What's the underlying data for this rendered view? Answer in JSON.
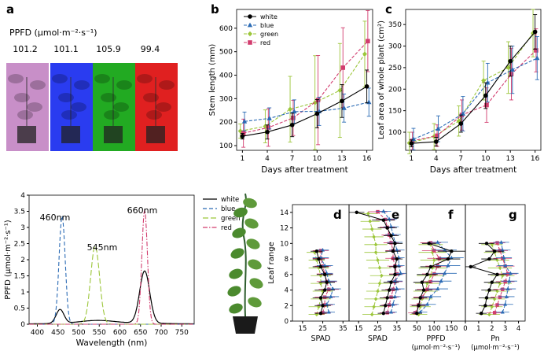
{
  "colors": {
    "white": "#000000",
    "blue": "#2b6bb5",
    "green": "#9cc63a",
    "red": "#d23c6e",
    "axis": "#333333"
  },
  "panel_letters": {
    "a": "a",
    "b": "b",
    "c": "c",
    "d": "d",
    "e": "e",
    "f": "f",
    "g": "g"
  },
  "panel_a": {
    "ppfd_label": "PPFD (μmol·m⁻²·s⁻¹)",
    "ppfd_values": [
      "101.2",
      "101.1",
      "105.9",
      "99.4"
    ],
    "photo_colors": [
      "#c88fc8",
      "#2a3cf0",
      "#22aa22",
      "#e02020"
    ]
  },
  "chart_data": [
    {
      "id": "spectrum",
      "type": "line",
      "xlabel": "Wavelength (nm)",
      "ylabel": "PPFD (μmol·m⁻²·s⁻¹)",
      "xlim": [
        380,
        780
      ],
      "ylim": [
        0,
        4
      ],
      "xticks": [
        400,
        450,
        500,
        550,
        600,
        650,
        700,
        750
      ],
      "yticks": [
        0,
        0.5,
        1,
        1.5,
        2,
        2.5,
        3,
        3.5,
        4
      ],
      "ytick_labels": [
        "0",
        "0.5",
        "1",
        "1.5",
        "2",
        "2.5",
        "3",
        "3.5",
        "4"
      ],
      "annotations": [
        "460nm",
        "545nm",
        "660nm"
      ],
      "legend": [
        "white",
        "blue",
        "green",
        "red"
      ],
      "series": [
        {
          "name": "white",
          "style": "solid",
          "peaks": [
            [
              455,
              0.43,
              14
            ],
            [
              545,
              0.08,
              60
            ],
            [
              660,
              1.62,
              18
            ]
          ],
          "base": 0.04
        },
        {
          "name": "blue",
          "style": "dash",
          "peaks": [
            [
              460,
              3.35,
              11
            ]
          ],
          "base": 0.0
        },
        {
          "name": "green",
          "style": "dash2",
          "peaks": [
            [
              540,
              2.43,
              16
            ]
          ],
          "base": 0.0
        },
        {
          "name": "red",
          "style": "dashdot",
          "peaks": [
            [
              660,
              3.55,
              10
            ]
          ],
          "base": 0.0
        }
      ]
    },
    {
      "id": "stem",
      "type": "line",
      "xlabel": "Days after treatment",
      "ylabel": "Stem length (mm)",
      "x": [
        1,
        4,
        7,
        10,
        13,
        16
      ],
      "xticks": [
        "1",
        "4",
        "7",
        "10",
        "13",
        "16"
      ],
      "ylim": [
        80,
        680
      ],
      "yticks": [
        100,
        200,
        300,
        400,
        500,
        600
      ],
      "legend": [
        "white",
        "blue",
        "green",
        "red"
      ],
      "series": [
        {
          "name": "white",
          "values": [
            140,
            158,
            188,
            236,
            290,
            352
          ],
          "err": [
            12,
            30,
            50,
            60,
            70,
            70
          ]
        },
        {
          "name": "blue",
          "values": [
            203,
            216,
            245,
            246,
            260,
            285
          ],
          "err": [
            40,
            45,
            50,
            60,
            60,
            60
          ]
        },
        {
          "name": "green",
          "values": [
            162,
            182,
            255,
            283,
            335,
            490
          ],
          "err": [
            30,
            70,
            140,
            200,
            200,
            140
          ]
        },
        {
          "name": "red",
          "values": [
            153,
            177,
            218,
            294,
            432,
            545
          ],
          "err": [
            60,
            80,
            75,
            190,
            170,
            130
          ]
        }
      ]
    },
    {
      "id": "leafarea",
      "type": "line",
      "xlabel": "Days after treatment",
      "ylabel": "Leaf area of whole plant (cm²)",
      "x": [
        1,
        4,
        7,
        10,
        13,
        16
      ],
      "xticks": [
        "1",
        "4",
        "7",
        "10",
        "13",
        "16"
      ],
      "ylim": [
        58,
        385
      ],
      "yticks": [
        100,
        150,
        200,
        250,
        300,
        350
      ],
      "legend": [
        "white",
        "blue",
        "green",
        "red"
      ],
      "series": [
        {
          "name": "white",
          "values": [
            74,
            78,
            120,
            185,
            265,
            333
          ],
          "err": [
            8,
            10,
            20,
            30,
            35,
            40
          ]
        },
        {
          "name": "blue",
          "values": [
            84,
            108,
            143,
            215,
            245,
            272
          ],
          "err": [
            25,
            30,
            40,
            45,
            55,
            50
          ]
        },
        {
          "name": "green",
          "values": [
            75,
            90,
            126,
            220,
            250,
            330
          ],
          "err": [
            25,
            30,
            35,
            45,
            60,
            55
          ]
        },
        {
          "name": "red",
          "values": [
            80,
            92,
            140,
            163,
            235,
            290
          ],
          "err": [
            20,
            25,
            35,
            40,
            60,
            50
          ]
        }
      ]
    },
    {
      "id": "spad_d",
      "type": "line",
      "xlabel": "SPAD",
      "ylabel": "Leaf range",
      "xlim": [
        10,
        38
      ],
      "xticks": [
        15,
        25,
        35
      ],
      "ylim": [
        0,
        15
      ],
      "yticks": [
        0,
        2,
        4,
        6,
        8,
        10,
        12,
        14
      ],
      "y": [
        1,
        2,
        3,
        4,
        5,
        6,
        7,
        8,
        9
      ],
      "series": [
        {
          "name": "white",
          "values": [
            24,
            25,
            24,
            26,
            27,
            26,
            24,
            23,
            22
          ],
          "err": [
            3,
            4,
            4,
            5,
            4,
            4,
            4,
            3,
            3
          ]
        },
        {
          "name": "blue",
          "values": [
            28,
            27,
            29,
            30,
            28,
            27,
            26,
            24,
            25
          ],
          "err": [
            3,
            4,
            4,
            4,
            4,
            3,
            4,
            4,
            3
          ]
        },
        {
          "name": "green",
          "values": [
            22,
            23,
            24,
            25,
            24,
            24,
            23,
            22,
            21
          ],
          "err": [
            4,
            5,
            5,
            5,
            5,
            5,
            5,
            4,
            4
          ]
        },
        {
          "name": "red",
          "values": [
            25,
            26,
            26,
            28,
            27,
            26,
            25,
            24,
            24
          ],
          "err": [
            4,
            4,
            5,
            5,
            5,
            4,
            4,
            4,
            4
          ]
        }
      ]
    },
    {
      "id": "spad_e",
      "type": "line",
      "xlabel": "SPAD",
      "xlim": [
        10,
        40
      ],
      "xticks": [
        15,
        25,
        35
      ],
      "ylim": [
        0,
        15
      ],
      "y": [
        1,
        2,
        3,
        4,
        5,
        6,
        7,
        8,
        9,
        10,
        11,
        12,
        13,
        14
      ],
      "series": [
        {
          "name": "white",
          "values": [
            28,
            29,
            30,
            31,
            32,
            34,
            34,
            35,
            33,
            34,
            32,
            30,
            28,
            14
          ],
          "err": [
            3,
            3,
            4,
            4,
            4,
            3,
            3,
            3,
            4,
            4,
            4,
            5,
            6,
            4
          ]
        },
        {
          "name": "blue",
          "values": [
            32,
            33,
            34,
            35,
            34,
            37,
            36,
            36,
            35,
            34,
            33,
            32,
            31,
            28
          ],
          "err": [
            3,
            3,
            3,
            4,
            4,
            3,
            3,
            3,
            4,
            4,
            4,
            4,
            4,
            4
          ]
        },
        {
          "name": "green",
          "values": [
            22,
            23,
            24,
            25,
            26,
            27,
            26,
            25,
            24,
            24,
            23,
            22,
            21,
            20
          ],
          "err": [
            5,
            5,
            6,
            6,
            6,
            6,
            6,
            6,
            6,
            6,
            5,
            5,
            5,
            5
          ]
        },
        {
          "name": "red",
          "values": [
            30,
            31,
            32,
            33,
            34,
            35,
            34,
            33,
            33,
            32,
            31,
            30,
            29,
            25
          ],
          "err": [
            4,
            4,
            4,
            4,
            4,
            4,
            4,
            4,
            4,
            4,
            4,
            4,
            5,
            5
          ]
        }
      ]
    },
    {
      "id": "ppfd_f",
      "type": "line",
      "xlabel": "PPFD",
      "xlabel2": "(μmol·m⁻²·s⁻¹)",
      "xlim": [
        20,
        190
      ],
      "xticks": [
        50,
        100,
        150
      ],
      "ylim": [
        0,
        15
      ],
      "y": [
        1,
        2,
        3,
        4,
        5,
        6,
        7,
        8,
        9,
        10
      ],
      "series": [
        {
          "name": "white",
          "values": [
            50,
            55,
            60,
            70,
            65,
            80,
            90,
            140,
            150,
            85
          ],
          "err": [
            15,
            20,
            20,
            25,
            25,
            30,
            30,
            35,
            40,
            20
          ]
        },
        {
          "name": "blue",
          "values": [
            60,
            80,
            90,
            110,
            120,
            130,
            140,
            150,
            130,
            110
          ],
          "err": [
            20,
            25,
            30,
            30,
            30,
            35,
            35,
            35,
            35,
            30
          ]
        },
        {
          "name": "green",
          "values": [
            55,
            60,
            65,
            75,
            80,
            90,
            95,
            100,
            95,
            90
          ],
          "err": [
            25,
            30,
            30,
            35,
            35,
            40,
            40,
            40,
            40,
            35
          ]
        },
        {
          "name": "red",
          "values": [
            45,
            55,
            65,
            80,
            90,
            100,
            110,
            115,
            100,
            90
          ],
          "err": [
            20,
            25,
            25,
            30,
            30,
            35,
            35,
            35,
            35,
            30
          ]
        }
      ]
    },
    {
      "id": "pn_g",
      "type": "line",
      "xlabel": "Pn",
      "xlabel2": "(μmol·m⁻²·s⁻¹)",
      "xlim": [
        0,
        4.5
      ],
      "xticks": [
        0,
        1,
        2,
        3,
        4
      ],
      "ylim": [
        0,
        15
      ],
      "y": [
        1,
        2,
        3,
        4,
        5,
        6,
        7,
        8,
        9,
        10
      ],
      "series": [
        {
          "name": "white",
          "values": [
            1.2,
            1.5,
            1.6,
            1.8,
            2.0,
            2.4,
            0.4,
            1.8,
            2.2,
            1.6
          ],
          "err": [
            0.4,
            0.5,
            0.6,
            0.6,
            0.6,
            0.7,
            0.4,
            0.6,
            0.7,
            0.6
          ]
        },
        {
          "name": "blue",
          "values": [
            2.8,
            3.0,
            3.1,
            3.2,
            3.3,
            3.4,
            3.0,
            2.9,
            2.8,
            2.7
          ],
          "err": [
            0.5,
            0.6,
            0.6,
            0.6,
            0.6,
            0.6,
            0.6,
            0.6,
            0.6,
            0.6
          ]
        },
        {
          "name": "green",
          "values": [
            1.8,
            2.0,
            2.2,
            2.4,
            2.6,
            2.8,
            2.6,
            2.4,
            2.2,
            2.0
          ],
          "err": [
            0.8,
            0.8,
            0.8,
            0.9,
            0.9,
            0.9,
            0.9,
            0.9,
            0.8,
            0.8
          ]
        },
        {
          "name": "red",
          "values": [
            2.2,
            2.4,
            2.6,
            2.8,
            3.0,
            3.2,
            3.0,
            2.8,
            2.6,
            2.4
          ],
          "err": [
            0.6,
            0.6,
            0.7,
            0.7,
            0.7,
            0.7,
            0.7,
            0.7,
            0.6,
            0.6
          ]
        }
      ]
    }
  ]
}
